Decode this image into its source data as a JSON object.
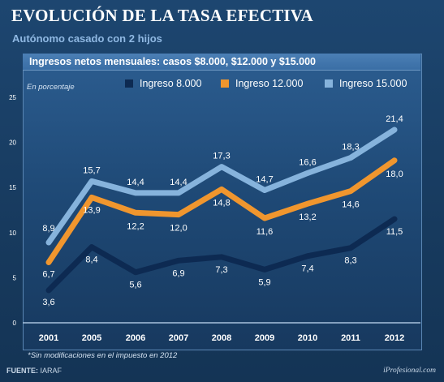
{
  "header": {
    "title": "EVOLUCIÓN DE LA TASA EFECTIVA",
    "subtitle": "Autónomo casado con 2 hijos"
  },
  "chart_data": {
    "type": "line",
    "title": "Ingresos netos mensuales: casos $8.000, $12.000 y $15.000",
    "ylabel": "En porcentaje",
    "xlabel": "",
    "categories": [
      "2001",
      "2005",
      "2006",
      "2007",
      "2008",
      "2009",
      "2010",
      "2011",
      "2012"
    ],
    "ylim": [
      0,
      25
    ],
    "yticks": [
      0,
      5,
      10,
      15,
      20,
      25
    ],
    "grid": false,
    "legend_position": "top",
    "series": [
      {
        "name": "Ingreso 8.000",
        "color": "#0d2a52",
        "values": [
          3.6,
          8.4,
          5.6,
          6.9,
          7.3,
          5.9,
          7.4,
          8.3,
          11.5
        ],
        "labels": [
          "3,6",
          "8,4",
          "5,6",
          "6,9",
          "7,3",
          "5,9",
          "7,4",
          "8,3",
          "11,5"
        ]
      },
      {
        "name": "Ingreso 12.000",
        "color": "#f0962e",
        "values": [
          6.7,
          13.9,
          12.2,
          12.0,
          14.8,
          11.6,
          13.2,
          14.6,
          18.0
        ],
        "labels": [
          "6,7",
          "13,9",
          "12,2",
          "12,0",
          "14,8",
          "11,6",
          "13,2",
          "14,6",
          "18,0"
        ]
      },
      {
        "name": "Ingreso 15.000",
        "color": "#86b3dc",
        "values": [
          8.9,
          15.7,
          14.4,
          14.4,
          17.3,
          14.7,
          16.6,
          18.3,
          21.4
        ],
        "labels": [
          "8,9",
          "15,7",
          "14,4",
          "14,4",
          "17,3",
          "14,7",
          "16,6",
          "18,3",
          "21,4"
        ]
      }
    ]
  },
  "footer": {
    "note": "*Sin modificaciones en el impuesto en 2012",
    "source_label": "FUENTE:",
    "source_value": "IARAF",
    "credit": "iProfesional.com"
  }
}
